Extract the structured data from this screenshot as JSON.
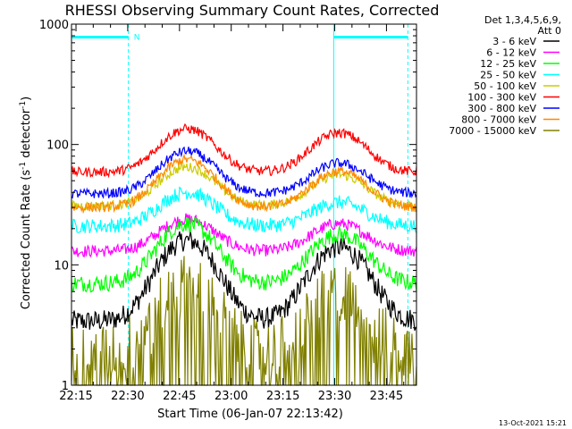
{
  "chart_data": {
    "type": "line",
    "title": "RHESSI Observing Summary Count Rates, Corrected",
    "xlabel": "Start Time (06-Jan-07 22:13:42)",
    "ylabel_main": "Corrected Count Rate (s",
    "ylabel_sup1": "-1",
    "ylabel_mid": " detector",
    "ylabel_sup2": "-1",
    "ylabel_end": ")",
    "yscale": "log",
    "ylim": [
      1,
      1000
    ],
    "xlim_minutes": [
      0,
      100
    ],
    "x_ticks": [
      {
        "label": "22:15",
        "min": 1.3
      },
      {
        "label": "22:30",
        "min": 16.3
      },
      {
        "label": "22:45",
        "min": 31.3
      },
      {
        "label": "23:00",
        "min": 46.3
      },
      {
        "label": "23:15",
        "min": 61.3
      },
      {
        "label": "23:30",
        "min": 76.3
      },
      {
        "label": "23:45",
        "min": 91.3
      }
    ],
    "y_ticks": [
      {
        "label": "1",
        "value": 1
      },
      {
        "label": "10",
        "value": 10
      },
      {
        "label": "100",
        "value": 100
      },
      {
        "label": "1000",
        "value": 1000
      }
    ],
    "legend": {
      "header1": "Det 1,3,4,5,6,9,",
      "header2": "Att 0",
      "placement": "right"
    },
    "series": [
      {
        "name": "3 - 6 keV",
        "color": "#000000",
        "base": 3.4,
        "peak1": 16,
        "peak2": 14,
        "noise": 0.09,
        "dropout": false
      },
      {
        "name": "6 - 12 keV",
        "color": "#ff00ff",
        "base": 13,
        "peak1": 24,
        "peak2": 22,
        "noise": 0.05,
        "dropout": false
      },
      {
        "name": "12 - 25 keV",
        "color": "#00ff00",
        "base": 7,
        "peak1": 22,
        "peak2": 18,
        "noise": 0.07,
        "dropout": false
      },
      {
        "name": "25 - 50 keV",
        "color": "#00ffff",
        "base": 21,
        "peak1": 40,
        "peak2": 33,
        "noise": 0.06,
        "dropout": false
      },
      {
        "name": "50 - 100 keV",
        "color": "#cccc00",
        "base": 31,
        "peak1": 65,
        "peak2": 56,
        "noise": 0.04,
        "dropout": false
      },
      {
        "name": "100 - 300 keV",
        "color": "#ff0000",
        "base": 59,
        "peak1": 135,
        "peak2": 125,
        "noise": 0.04,
        "dropout": false
      },
      {
        "name": "300 - 800 keV",
        "color": "#0000ff",
        "base": 39,
        "peak1": 88,
        "peak2": 70,
        "noise": 0.04,
        "dropout": false
      },
      {
        "name": "800 - 7000 keV",
        "color": "#ff8800",
        "base": 30,
        "peak1": 75,
        "peak2": 60,
        "noise": 0.04,
        "dropout": false
      },
      {
        "name": "7000 - 15000 keV",
        "color": "#808000",
        "base": 1.9,
        "peak1": 7,
        "peak2": 6,
        "noise": 0.25,
        "dropout": true
      }
    ],
    "peaks_minutes": [
      33.5,
      77.5
    ],
    "peak_width_minutes": 10,
    "night_intervals_minutes": [
      [
        0,
        16.5
      ],
      [
        76,
        97.5
      ]
    ],
    "night_marker": "N",
    "night_color": "#00ffff"
  },
  "timestamp": "13-Oct-2021 15:21"
}
